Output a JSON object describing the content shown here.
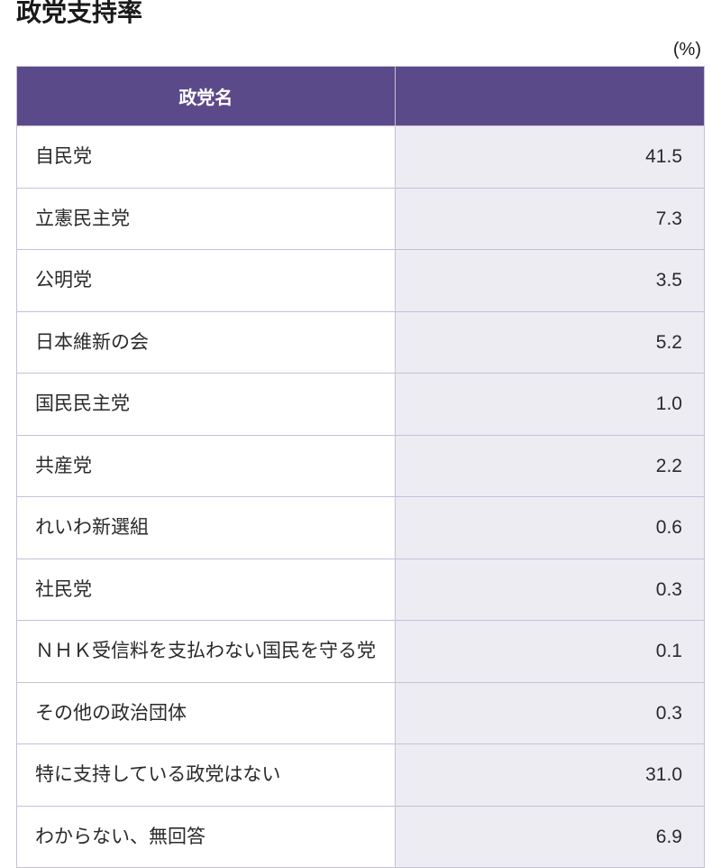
{
  "title": "政党支持率",
  "unit_label": "(%)",
  "table": {
    "header": {
      "name": "政党名",
      "value": ""
    },
    "rows": [
      {
        "name": "自民党",
        "value": "41.5"
      },
      {
        "name": "立憲民主党",
        "value": "7.3"
      },
      {
        "name": "公明党",
        "value": "3.5"
      },
      {
        "name": "日本維新の会",
        "value": "5.2"
      },
      {
        "name": "国民民主党",
        "value": "1.0"
      },
      {
        "name": "共産党",
        "value": "2.2"
      },
      {
        "name": "れいわ新選組",
        "value": "0.6"
      },
      {
        "name": "社民党",
        "value": "0.3"
      },
      {
        "name": "ＮＨＫ受信料を支払わない国民を守る党",
        "value": "0.1"
      },
      {
        "name": "その他の政治団体",
        "value": "0.3"
      },
      {
        "name": "特に支持している政党はない",
        "value": "31.0"
      },
      {
        "name": "わからない、無回答",
        "value": "6.9"
      }
    ],
    "colors": {
      "header_bg": "#5b4a8a",
      "header_text": "#ffffff",
      "border": "#c5c0d8",
      "name_cell_bg": "#ffffff",
      "value_cell_bg": "#eeecf3",
      "text_color": "#2a2a2a"
    }
  }
}
